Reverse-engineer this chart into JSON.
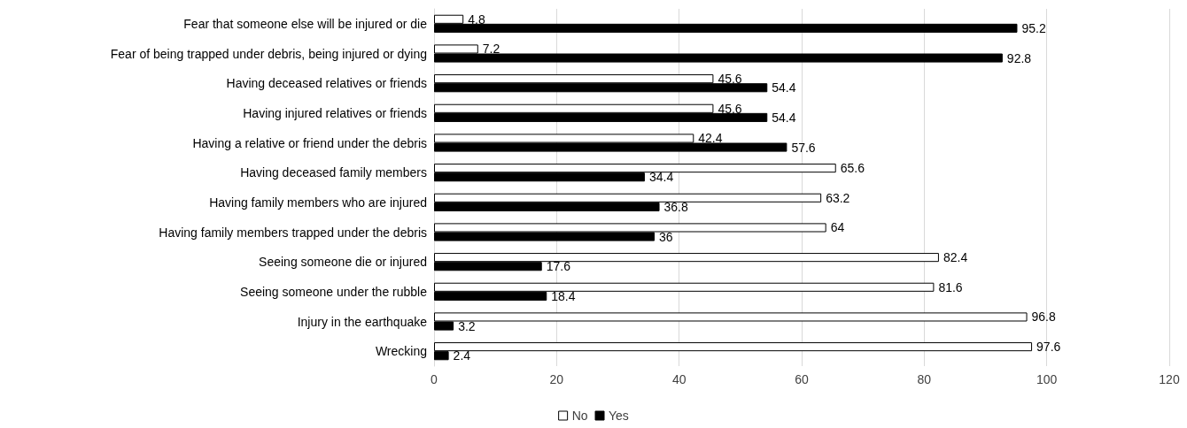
{
  "chart_data": {
    "type": "bar",
    "orientation": "horizontal",
    "categories": [
      "Fear that someone else will be injured or die",
      "Fear of being trapped under debris, being injured or dying",
      "Having deceased relatives or friends",
      "Having injured relatives or friends",
      "Having a relative or friend under the debris",
      "Having deceased family members",
      "Having family members who are injured",
      "Having family members trapped under the debris",
      "Seeing someone die or injured",
      "Seeing someone under the rubble",
      "Injury in the earthquake",
      "Wrecking"
    ],
    "series": [
      {
        "name": "No",
        "color": "#ffffff",
        "values": [
          4.8,
          7.2,
          45.6,
          45.6,
          42.4,
          65.6,
          63.2,
          64,
          82.4,
          81.6,
          96.8,
          97.6
        ]
      },
      {
        "name": "Yes",
        "color": "#000000",
        "values": [
          95.2,
          92.8,
          54.4,
          54.4,
          57.6,
          34.4,
          36.8,
          36,
          17.6,
          18.4,
          3.2,
          2.4
        ]
      }
    ],
    "xlim": [
      0,
      120
    ],
    "xticks": [
      0,
      20,
      40,
      60,
      80,
      100,
      120
    ],
    "grid": "x",
    "legend": "bottom",
    "data_labels": true
  }
}
